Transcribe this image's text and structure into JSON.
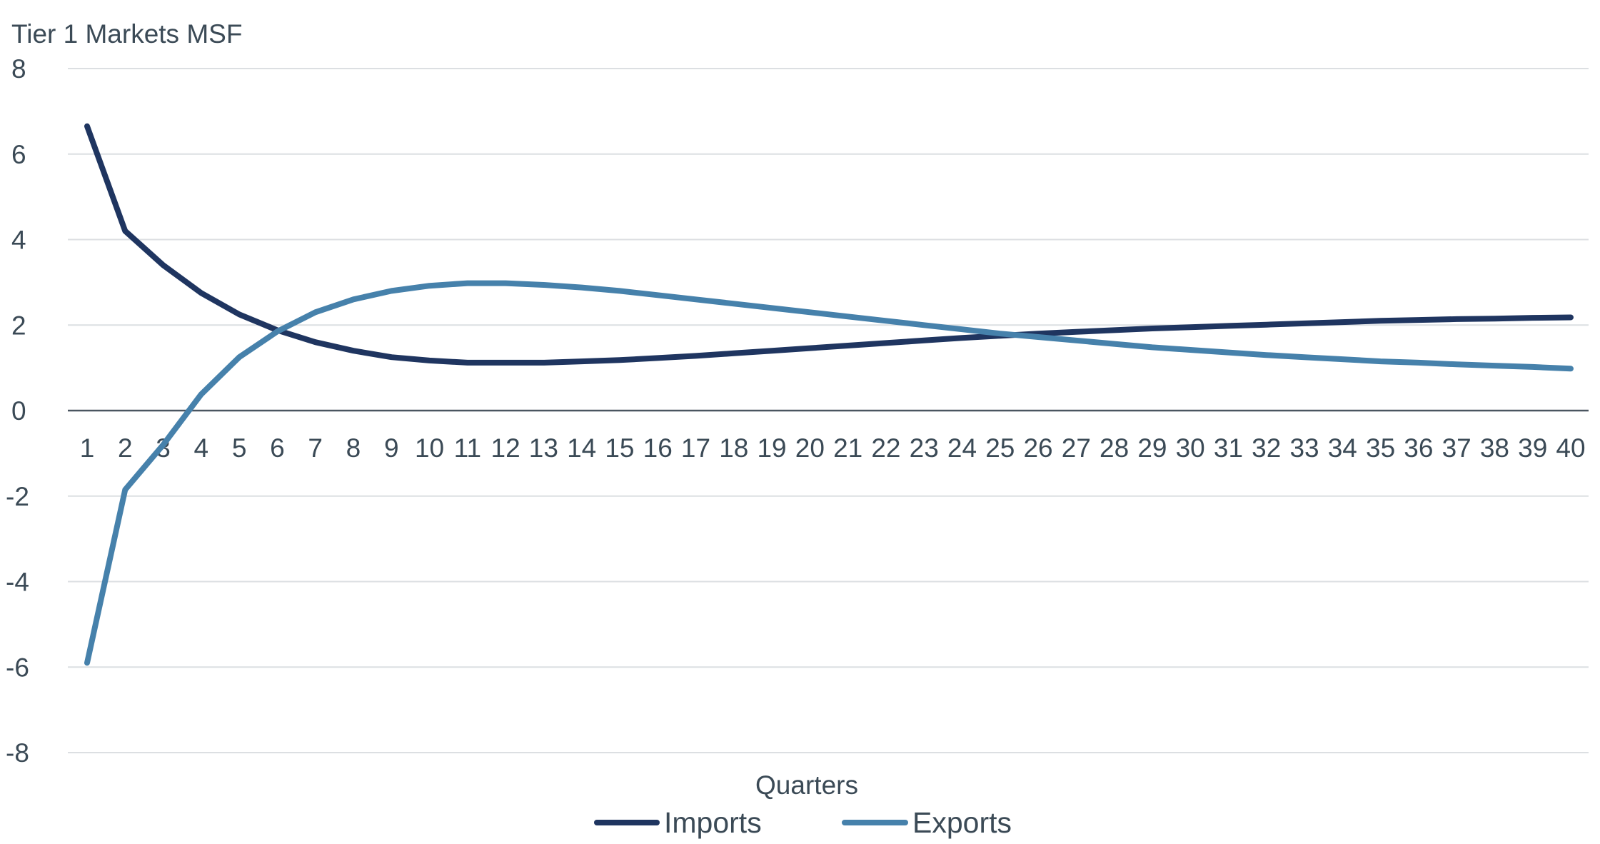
{
  "chart_data": {
    "type": "line",
    "title": "Tier 1 Markets MSF",
    "xlabel": "Quarters",
    "ylabel": "",
    "ylim": [
      -8,
      8
    ],
    "yticks": [
      8,
      6,
      4,
      2,
      0,
      -2,
      -4,
      -6,
      -8
    ],
    "x": [
      1,
      2,
      3,
      4,
      5,
      6,
      7,
      8,
      9,
      10,
      11,
      12,
      13,
      14,
      15,
      16,
      17,
      18,
      19,
      20,
      21,
      22,
      23,
      24,
      25,
      26,
      27,
      28,
      29,
      30,
      31,
      32,
      33,
      34,
      35,
      36,
      37,
      38,
      39,
      40
    ],
    "grid": true,
    "legend_position": "bottom",
    "series": [
      {
        "name": "Imports",
        "color": "#1f3560",
        "values": [
          6.65,
          4.2,
          3.4,
          2.75,
          2.25,
          1.88,
          1.6,
          1.4,
          1.25,
          1.17,
          1.12,
          1.12,
          1.12,
          1.15,
          1.18,
          1.23,
          1.28,
          1.34,
          1.4,
          1.46,
          1.52,
          1.58,
          1.64,
          1.7,
          1.75,
          1.8,
          1.84,
          1.88,
          1.92,
          1.95,
          1.98,
          2.01,
          2.04,
          2.07,
          2.1,
          2.12,
          2.14,
          2.15,
          2.17,
          2.18
        ]
      },
      {
        "name": "Exports",
        "color": "#4681ab",
        "values": [
          -5.9,
          -1.85,
          -0.8,
          0.38,
          1.25,
          1.85,
          2.3,
          2.6,
          2.8,
          2.92,
          2.98,
          2.98,
          2.94,
          2.88,
          2.8,
          2.7,
          2.6,
          2.5,
          2.4,
          2.3,
          2.2,
          2.1,
          2.0,
          1.9,
          1.8,
          1.72,
          1.64,
          1.56,
          1.48,
          1.42,
          1.36,
          1.3,
          1.25,
          1.2,
          1.15,
          1.12,
          1.08,
          1.05,
          1.02,
          0.98
        ]
      }
    ]
  }
}
